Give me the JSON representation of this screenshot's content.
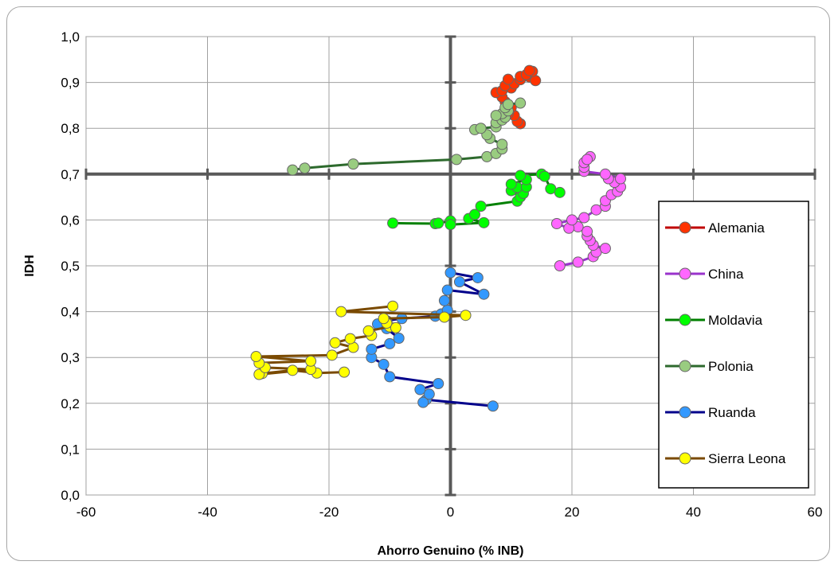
{
  "chart_data": {
    "type": "scatter",
    "xlabel": "Ahorro Genuino (% INB)",
    "ylabel": "IDH",
    "xlim": [
      -60,
      60
    ],
    "ylim": [
      0.0,
      1.0
    ],
    "x_ticks": [
      "-60",
      "-40",
      "-20",
      "0",
      "20",
      "40",
      "60"
    ],
    "y_ticks": [
      "0,0",
      "0,1",
      "0,2",
      "0,3",
      "0,4",
      "0,5",
      "0,6",
      "0,7",
      "0,8",
      "0,9",
      "1,0"
    ],
    "grid": true,
    "legend_position": "right",
    "series": [
      {
        "name": "Alemania",
        "line_color": "#c00000",
        "marker_color": "#ff3300",
        "points": [
          [
            11.5,
            0.81
          ],
          [
            11.0,
            0.815
          ],
          [
            10.5,
            0.828
          ],
          [
            9.5,
            0.832
          ],
          [
            10.0,
            0.845
          ],
          [
            9.0,
            0.858
          ],
          [
            8.5,
            0.868
          ],
          [
            7.5,
            0.878
          ],
          [
            8.5,
            0.882
          ],
          [
            10.0,
            0.888
          ],
          [
            9.0,
            0.893
          ],
          [
            10.5,
            0.897
          ],
          [
            9.5,
            0.907
          ],
          [
            11.5,
            0.906
          ],
          [
            11.5,
            0.913
          ],
          [
            13.0,
            0.912
          ],
          [
            12.5,
            0.917
          ],
          [
            14.0,
            0.904
          ],
          [
            13.5,
            0.924
          ],
          [
            13.0,
            0.926
          ]
        ]
      },
      {
        "name": "China",
        "line_color": "#9933cc",
        "marker_color": "#ff66ff",
        "points": [
          [
            18.0,
            0.5
          ],
          [
            21.0,
            0.508
          ],
          [
            23.5,
            0.52
          ],
          [
            24.0,
            0.53
          ],
          [
            25.5,
            0.538
          ],
          [
            23.5,
            0.545
          ],
          [
            23.0,
            0.555
          ],
          [
            22.5,
            0.565
          ],
          [
            22.5,
            0.575
          ],
          [
            21.0,
            0.585
          ],
          [
            19.5,
            0.582
          ],
          [
            17.5,
            0.592
          ],
          [
            20.0,
            0.6
          ],
          [
            22.0,
            0.605
          ],
          [
            24.0,
            0.622
          ],
          [
            25.5,
            0.63
          ],
          [
            25.5,
            0.642
          ],
          [
            26.5,
            0.655
          ],
          [
            27.5,
            0.662
          ],
          [
            28.0,
            0.672
          ],
          [
            27.0,
            0.682
          ],
          [
            26.0,
            0.69
          ],
          [
            28.0,
            0.69
          ],
          [
            25.5,
            0.7
          ],
          [
            22.0,
            0.706
          ],
          [
            22.0,
            0.715
          ],
          [
            22.0,
            0.725
          ],
          [
            23.0,
            0.738
          ],
          [
            22.5,
            0.732
          ]
        ]
      },
      {
        "name": "Moldavia",
        "line_color": "#008000",
        "marker_color": "#00ff00",
        "points": [
          [
            -9.5,
            0.593
          ],
          [
            -2.5,
            0.592
          ],
          [
            -2.0,
            0.593
          ],
          [
            0.0,
            0.598
          ],
          [
            0.0,
            0.59
          ],
          [
            5.5,
            0.594
          ],
          [
            3.0,
            0.603
          ],
          [
            4.0,
            0.612
          ],
          [
            5.0,
            0.63
          ],
          [
            11.0,
            0.641
          ],
          [
            11.5,
            0.65
          ],
          [
            10.0,
            0.664
          ],
          [
            12.0,
            0.658
          ],
          [
            11.0,
            0.671
          ],
          [
            12.5,
            0.672
          ],
          [
            10.0,
            0.678
          ],
          [
            12.5,
            0.688
          ],
          [
            11.5,
            0.697
          ],
          [
            15.0,
            0.7
          ],
          [
            15.5,
            0.695
          ],
          [
            16.5,
            0.668
          ],
          [
            18.0,
            0.66
          ]
        ]
      },
      {
        "name": "Polonia",
        "line_color": "#2d6a2d",
        "marker_color": "#99cc80",
        "points": [
          [
            -26.0,
            0.709
          ],
          [
            -24.0,
            0.713
          ],
          [
            -16.0,
            0.722
          ],
          [
            1.0,
            0.732
          ],
          [
            6.0,
            0.738
          ],
          [
            7.5,
            0.745
          ],
          [
            8.5,
            0.755
          ],
          [
            8.5,
            0.765
          ],
          [
            6.5,
            0.778
          ],
          [
            6.0,
            0.786
          ],
          [
            4.0,
            0.797
          ],
          [
            5.0,
            0.8
          ],
          [
            7.5,
            0.803
          ],
          [
            7.5,
            0.812
          ],
          [
            8.5,
            0.818
          ],
          [
            9.0,
            0.824
          ],
          [
            8.5,
            0.832
          ],
          [
            7.5,
            0.828
          ],
          [
            9.5,
            0.838
          ],
          [
            9.0,
            0.845
          ],
          [
            9.5,
            0.852
          ],
          [
            11.5,
            0.855
          ]
        ]
      },
      {
        "name": "Ruanda",
        "line_color": "#00008b",
        "marker_color": "#3399ff",
        "points": [
          [
            7.0,
            0.194
          ],
          [
            -4.0,
            0.208
          ],
          [
            -4.5,
            0.202
          ],
          [
            -3.5,
            0.22
          ],
          [
            -5.0,
            0.23
          ],
          [
            -2.0,
            0.243
          ],
          [
            -10.0,
            0.258
          ],
          [
            -11.0,
            0.285
          ],
          [
            -13.0,
            0.3
          ],
          [
            -13.0,
            0.318
          ],
          [
            -10.0,
            0.33
          ],
          [
            -8.5,
            0.342
          ],
          [
            -10.5,
            0.363
          ],
          [
            -12.0,
            0.373
          ],
          [
            -10.5,
            0.38
          ],
          [
            -8.0,
            0.385
          ],
          [
            -2.5,
            0.39
          ],
          [
            -1.5,
            0.395
          ],
          [
            -0.5,
            0.403
          ],
          [
            -1.0,
            0.424
          ],
          [
            -0.5,
            0.447
          ],
          [
            5.5,
            0.438
          ],
          [
            1.5,
            0.465
          ],
          [
            4.5,
            0.474
          ],
          [
            0.0,
            0.485
          ]
        ]
      },
      {
        "name": "Sierra Leona",
        "line_color": "#7a4a00",
        "marker_color": "#ffff00",
        "points": [
          [
            -17.5,
            0.268
          ],
          [
            -22.0,
            0.266
          ],
          [
            -26.0,
            0.272
          ],
          [
            -31.0,
            0.265
          ],
          [
            -31.5,
            0.263
          ],
          [
            -23.0,
            0.274
          ],
          [
            -30.5,
            0.278
          ],
          [
            -31.5,
            0.288
          ],
          [
            -23.0,
            0.292
          ],
          [
            -32.0,
            0.302
          ],
          [
            -19.5,
            0.305
          ],
          [
            -16.0,
            0.322
          ],
          [
            -19.0,
            0.332
          ],
          [
            -16.5,
            0.341
          ],
          [
            -13.0,
            0.348
          ],
          [
            -13.5,
            0.358
          ],
          [
            -10.0,
            0.367
          ],
          [
            -9.0,
            0.365
          ],
          [
            -10.5,
            0.375
          ],
          [
            -11.0,
            0.385
          ],
          [
            -1.0,
            0.388
          ],
          [
            2.5,
            0.392
          ],
          [
            -18.0,
            0.4
          ],
          [
            -9.5,
            0.412
          ]
        ]
      }
    ]
  }
}
